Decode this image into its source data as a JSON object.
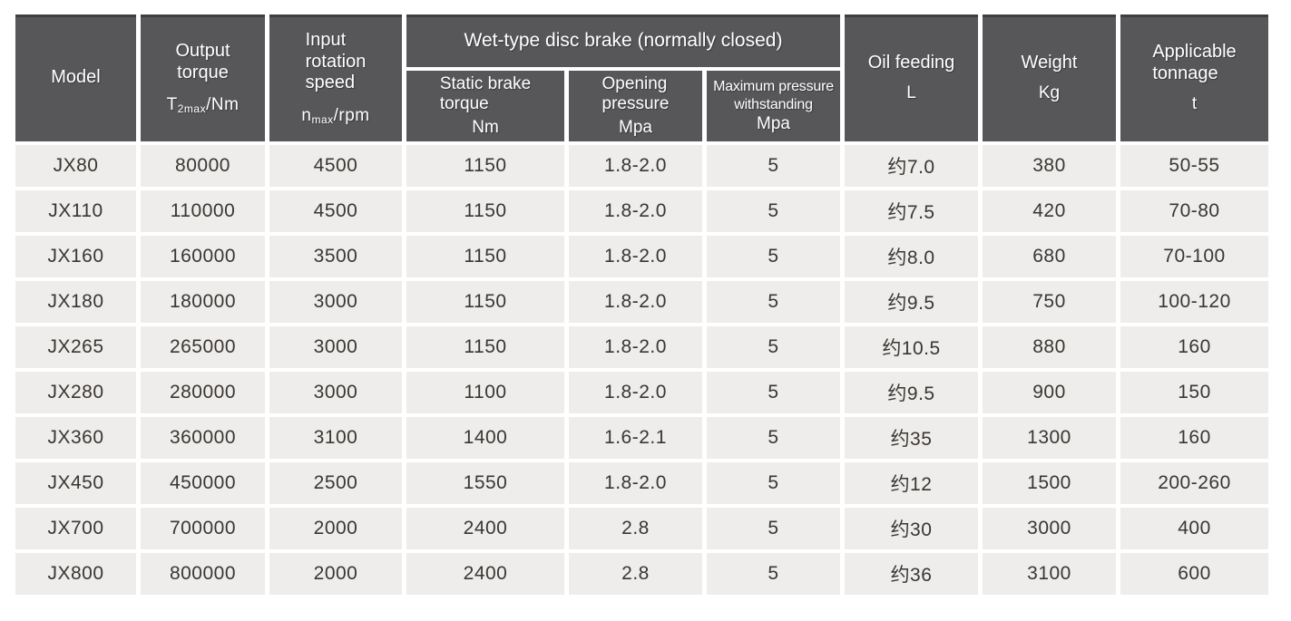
{
  "table": {
    "header": {
      "model": "Model",
      "output_torque": {
        "line1": "Output",
        "line2": "torque",
        "sym_main": "T",
        "sym_sub": "2max",
        "sym_unit": "/Nm"
      },
      "input_speed": {
        "line1": "Input",
        "line2": "rotation",
        "line3": "speed",
        "sym_main": "n",
        "sym_sub": "max",
        "sym_unit": "/rpm"
      },
      "brake_group": "Wet-type disc brake (normally closed)",
      "static_brake": {
        "line1": "Static brake",
        "line2": "torque",
        "unit": "Nm"
      },
      "opening_pressure": {
        "line1": "Opening",
        "line2": "pressure",
        "unit": "Mpa"
      },
      "max_pressure": {
        "line1": "Maximum pressure",
        "line2": "withstanding",
        "unit": "Mpa"
      },
      "oil_feeding": {
        "label": "Oil feeding",
        "unit": "L"
      },
      "weight": {
        "label": "Weight",
        "unit": "Kg"
      },
      "tonnage": {
        "line1": "Applicable",
        "line2": "tonnage",
        "unit": "t"
      }
    },
    "column_keys": [
      "model",
      "output-torque",
      "input-rotation-speed",
      "static-brake-torque",
      "opening-pressure",
      "max-pressure-withstanding",
      "oil-feeding",
      "weight",
      "applicable-tonnage"
    ],
    "rows": [
      [
        "JX80",
        "80000",
        "4500",
        "1150",
        "1.8-2.0",
        "5",
        "约7.0",
        "380",
        "50-55"
      ],
      [
        "JX110",
        "110000",
        "4500",
        "1150",
        "1.8-2.0",
        "5",
        "约7.5",
        "420",
        "70-80"
      ],
      [
        "JX160",
        "160000",
        "3500",
        "1150",
        "1.8-2.0",
        "5",
        "约8.0",
        "680",
        "70-100"
      ],
      [
        "JX180",
        "180000",
        "3000",
        "1150",
        "1.8-2.0",
        "5",
        "约9.5",
        "750",
        "100-120"
      ],
      [
        "JX265",
        "265000",
        "3000",
        "1150",
        "1.8-2.0",
        "5",
        "约10.5",
        "880",
        "160"
      ],
      [
        "JX280",
        "280000",
        "3000",
        "1100",
        "1.8-2.0",
        "5",
        "约9.5",
        "900",
        "150"
      ],
      [
        "JX360",
        "360000",
        "3100",
        "1400",
        "1.6-2.1",
        "5",
        "约35",
        "1300",
        "160"
      ],
      [
        "JX450",
        "450000",
        "2500",
        "1550",
        "1.8-2.0",
        "5",
        "约12",
        "1500",
        "200-260"
      ],
      [
        "JX700",
        "700000",
        "2000",
        "2400",
        "2.8",
        "5",
        "约30",
        "3000",
        "400"
      ],
      [
        "JX800",
        "800000",
        "2000",
        "2400",
        "2.8",
        "5",
        "约36",
        "3100",
        "600"
      ]
    ],
    "colors": {
      "header_background": "#57575a",
      "header_text": "#ffffff",
      "cell_background": "#eeedec",
      "gutter": "#ffffff",
      "data_text": "#3a3632"
    }
  }
}
